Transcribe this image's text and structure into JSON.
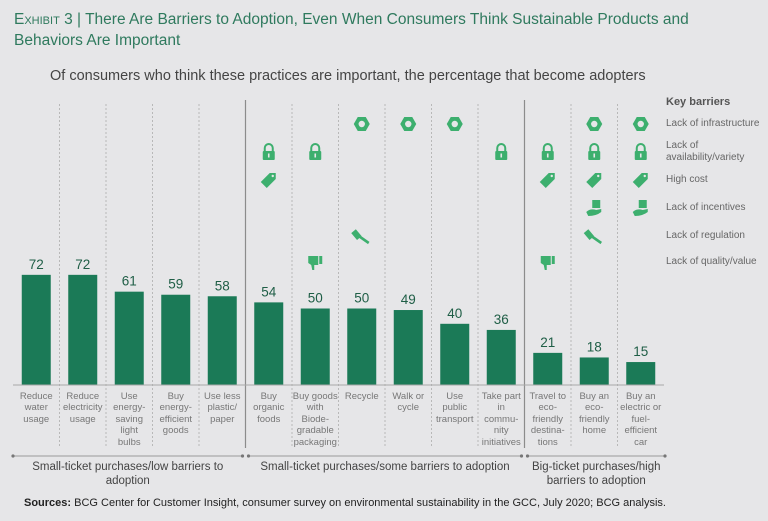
{
  "title": {
    "exhibit": "Exhibit 3",
    "separator": "|",
    "text": "There Are Barriers to Adoption, Even When Consumers Think Sustainable Products and Behaviors Are Important"
  },
  "subtitle": "Of consumers who think these practices are important, the percentage that become adopters",
  "colors": {
    "bar": "#1b7a57",
    "icon": "#3daf6e",
    "title": "#2f7a5e",
    "background": "#e6e6e8"
  },
  "legend": {
    "title": "Key barriers",
    "items": [
      {
        "key": "infrastructure",
        "icon": "nut-icon",
        "label": "Lack of infrastructure"
      },
      {
        "key": "availability",
        "icon": "lock-icon",
        "label": "Lack of availability/variety"
      },
      {
        "key": "cost",
        "icon": "price-tag-icon",
        "label": "High cost"
      },
      {
        "key": "incentives",
        "icon": "hand-box-icon",
        "label": "Lack of incentives"
      },
      {
        "key": "regulation",
        "icon": "gavel-icon",
        "label": "Lack of regulation"
      },
      {
        "key": "quality",
        "icon": "thumbs-down-icon",
        "label": "Lack of quality/value"
      }
    ]
  },
  "chart_data": {
    "type": "bar",
    "title": "Of consumers who think these practices are important, the percentage that become adopters",
    "xlabel": "",
    "ylabel": "",
    "ylim": [
      0,
      100
    ],
    "grid": false,
    "legend_position": "right",
    "categories": [
      "Reduce water usage",
      "Reduce electricity usage",
      "Use energy-saving light bulbs",
      "Buy energy-efficient goods",
      "Use less plastic/ paper",
      "Buy organic foods",
      "Buy goods with Biode-gradable packaging",
      "Recycle",
      "Walk or cycle",
      "Use public transport",
      "Take part in commu-nity initiatives",
      "Travel to eco-friendly destina-tions",
      "Buy an eco-friendly home",
      "Buy an electric or fuel-efficient car"
    ],
    "values": [
      72,
      72,
      61,
      59,
      58,
      54,
      50,
      50,
      49,
      40,
      36,
      21,
      18,
      15
    ],
    "barriers": [
      [],
      [],
      [],
      [],
      [],
      [
        "availability",
        "cost"
      ],
      [
        "availability",
        "quality"
      ],
      [
        "infrastructure",
        "regulation"
      ],
      [
        "infrastructure"
      ],
      [
        "infrastructure"
      ],
      [
        "availability"
      ],
      [
        "availability",
        "cost",
        "quality"
      ],
      [
        "infrastructure",
        "availability",
        "cost",
        "incentives",
        "regulation"
      ],
      [
        "infrastructure",
        "availability",
        "cost",
        "incentives"
      ]
    ],
    "groups": [
      {
        "label": "Small-ticket purchases/low barriers to adoption",
        "from": 0,
        "to": 4
      },
      {
        "label": "Small-ticket purchases/some barriers to adoption",
        "from": 5,
        "to": 10
      },
      {
        "label": "Big-ticket purchases/high barriers to adoption",
        "from": 11,
        "to": 13
      }
    ]
  },
  "category_lines": [
    [
      "Reduce",
      "water",
      "usage"
    ],
    [
      "Reduce",
      "electricity",
      "usage"
    ],
    [
      "Use",
      "energy-",
      "saving",
      "light",
      "bulbs"
    ],
    [
      "Buy",
      "energy-",
      "efficient",
      "goods"
    ],
    [
      "Use less",
      "plastic/",
      "paper"
    ],
    [
      "Buy",
      "organic",
      "foods"
    ],
    [
      "Buy goods",
      "with",
      "Biode-",
      "gradable",
      "packaging"
    ],
    [
      "Recycle"
    ],
    [
      "Walk or",
      "cycle"
    ],
    [
      "Use",
      "public",
      "transport"
    ],
    [
      "Take part",
      "in",
      "commu-",
      "nity",
      "initiatives"
    ],
    [
      "Travel to",
      "eco-",
      "friendly",
      "destina-",
      "tions"
    ],
    [
      "Buy an",
      "eco-",
      "friendly",
      "home"
    ],
    [
      "Buy an",
      "electric or",
      "fuel-",
      "efficient",
      "car"
    ]
  ],
  "group_lines": [
    [
      "Small-ticket purchases/low barriers to adoption"
    ],
    [
      "Small-ticket purchases/some barriers to adoption"
    ],
    [
      "Big-ticket purchases/high",
      "barriers to adoption"
    ]
  ],
  "sources": {
    "label": "Sources:",
    "text": " BCG Center for Customer Insight, consumer survey on environmental sustainability in the GCC, July 2020; BCG analysis."
  }
}
